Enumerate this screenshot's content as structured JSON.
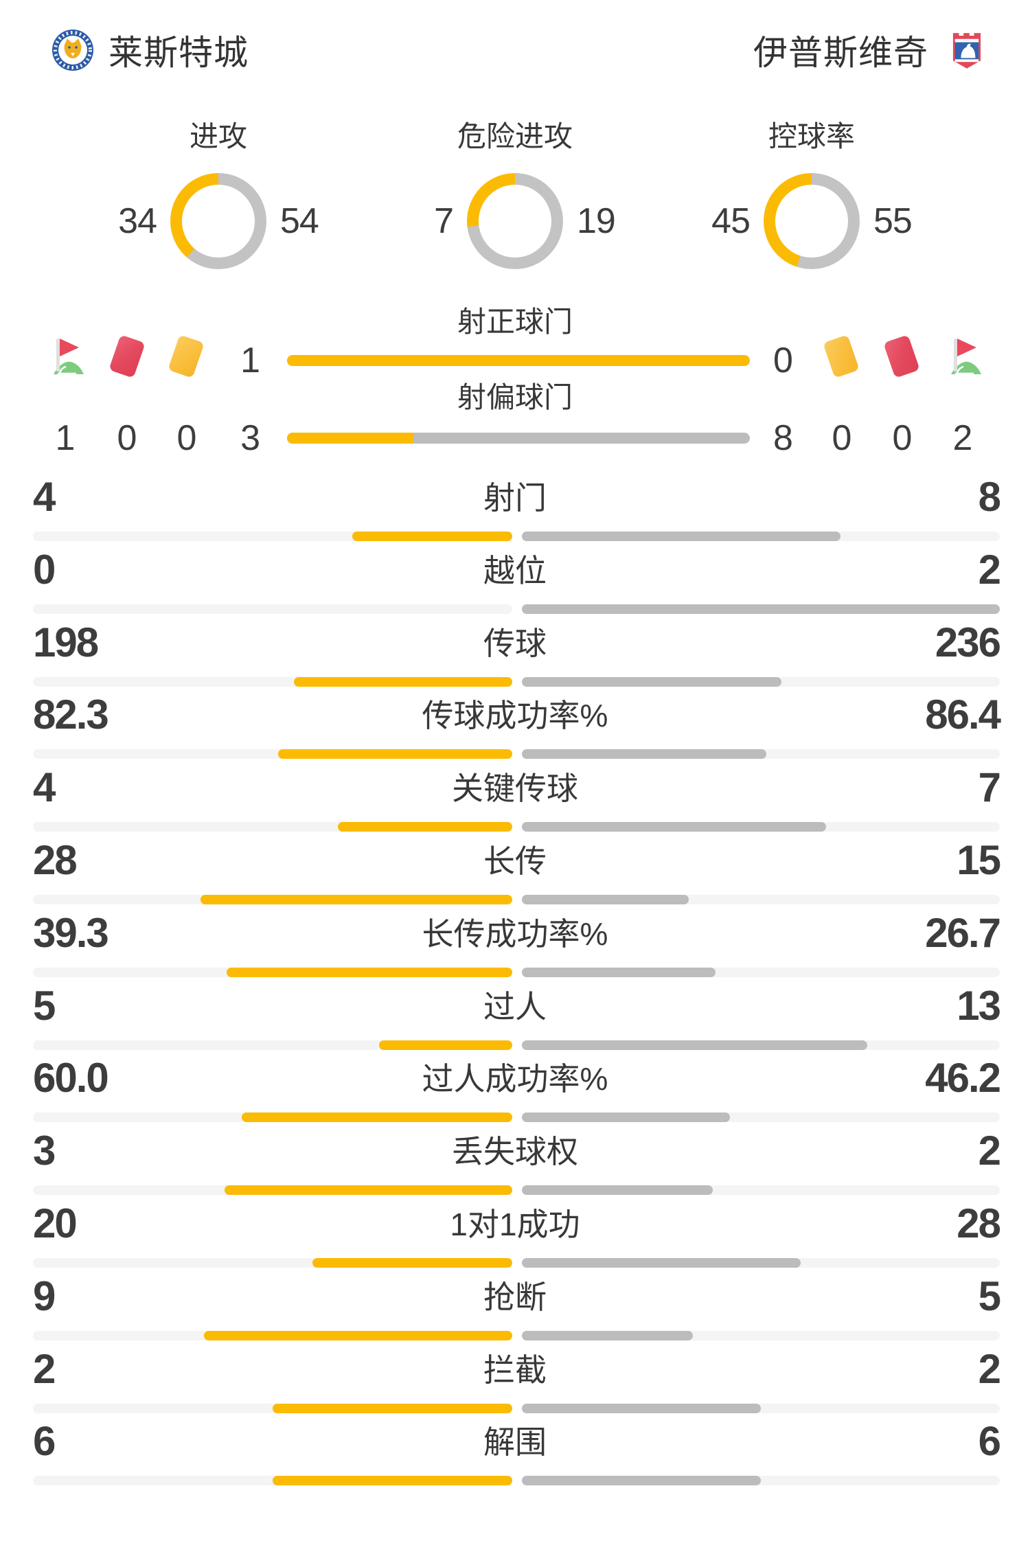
{
  "colors": {
    "yellow": "#FBBB04",
    "bar_gray": "#BCBCBC",
    "donut_gray": "#C3C3C3",
    "track_light": "#F4F4F4",
    "text_dark": "#3D3D3D",
    "card_red": "#E4495E",
    "card_yellow": "#F9BE3B",
    "flag_red": "#E9495C",
    "flag_green": "#7ECB80",
    "home_badge_blue": "#2B5BA7",
    "away_badge_red": "#E1495A"
  },
  "header": {
    "home_name": "莱斯特城",
    "away_name": "伊普斯维奇",
    "home_badge_icon": "leicester-city-crest",
    "away_badge_icon": "ipswich-town-crest"
  },
  "chart_data": {
    "type": "table",
    "teams": [
      "莱斯特城",
      "伊普斯维奇"
    ],
    "donuts": [
      {
        "label": "进攻",
        "values": [
          34,
          54
        ]
      },
      {
        "label": "危险进攻",
        "values": [
          7,
          19
        ]
      },
      {
        "label": "控球率",
        "values": [
          45,
          55
        ]
      }
    ],
    "shot_rows": [
      {
        "label": "射正球门",
        "values": [
          1,
          0
        ]
      },
      {
        "label": "射偏球门",
        "values": [
          3,
          8
        ]
      }
    ],
    "discipline": {
      "home": {
        "corners": 1,
        "red_cards": 0,
        "yellow_cards": 0
      },
      "away": {
        "yellow_cards": 0,
        "red_cards": 0,
        "corners": 2
      }
    },
    "stats": [
      {
        "label": "射门",
        "values": [
          4,
          8
        ]
      },
      {
        "label": "越位",
        "values": [
          0,
          2
        ]
      },
      {
        "label": "传球",
        "values": [
          198,
          236
        ]
      },
      {
        "label": "传球成功率%",
        "values": [
          "82.3",
          "86.4"
        ]
      },
      {
        "label": "关键传球",
        "values": [
          4,
          7
        ]
      },
      {
        "label": "长传",
        "values": [
          28,
          15
        ]
      },
      {
        "label": "长传成功率%",
        "values": [
          "39.3",
          "26.7"
        ]
      },
      {
        "label": "过人",
        "values": [
          5,
          13
        ]
      },
      {
        "label": "过人成功率%",
        "values": [
          "60.0",
          "46.2"
        ]
      },
      {
        "label": "丢失球权",
        "values": [
          3,
          2
        ]
      },
      {
        "label": "1对1成功",
        "values": [
          20,
          28
        ]
      },
      {
        "label": "抢断",
        "values": [
          9,
          5
        ]
      },
      {
        "label": "拦截",
        "values": [
          2,
          2
        ]
      },
      {
        "label": "解围",
        "values": [
          6,
          6
        ]
      }
    ]
  }
}
